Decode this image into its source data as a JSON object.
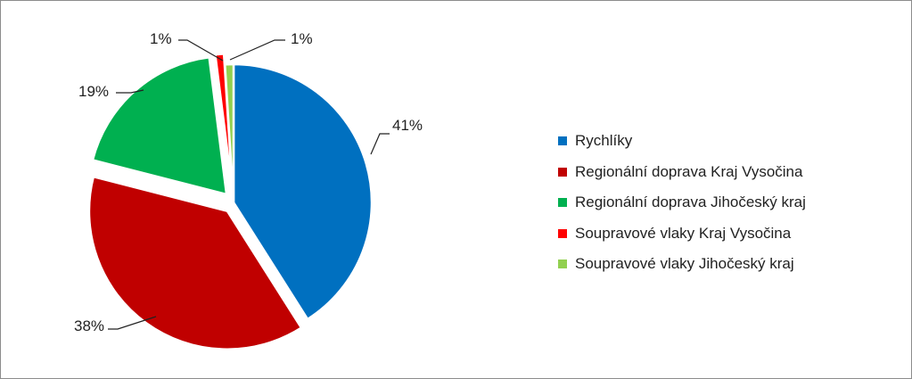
{
  "chart_data": {
    "type": "pie",
    "slices": [
      {
        "label": "Rychlíky",
        "value": 41,
        "value_label": "41%",
        "color": "#0070C0",
        "exploded": false
      },
      {
        "label": "Regionální doprava Kraj Vysočina",
        "value": 38,
        "value_label": "38%",
        "color": "#C00000",
        "exploded": true
      },
      {
        "label": "Regionální doprava Jihočeský kraj",
        "value": 19,
        "value_label": "19%",
        "color": "#00B050",
        "exploded": true
      },
      {
        "label": "Soupravové vlaky Kraj Vysočina",
        "value": 1,
        "value_label": "1%",
        "color": "#FF0000",
        "exploded": true
      },
      {
        "label": "Soupravové vlaky Jihočeský kraj",
        "value": 1,
        "value_label": "1%",
        "color": "#92D050",
        "exploded": false
      }
    ],
    "legend_position": "right"
  }
}
